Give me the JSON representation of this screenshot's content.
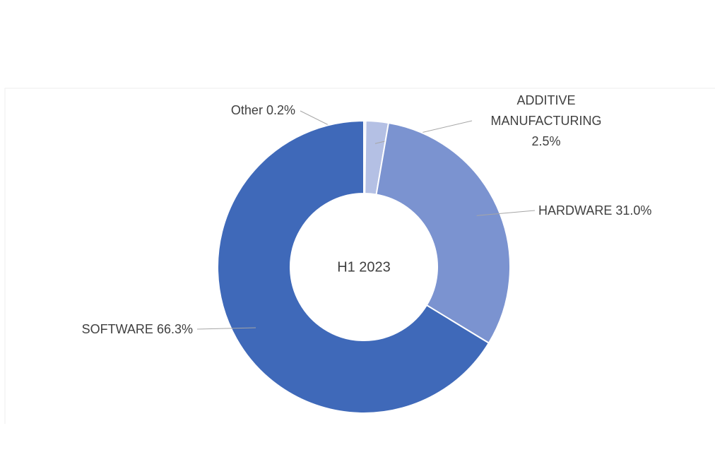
{
  "chart_data": {
    "type": "donut",
    "center_label": "H1 2023",
    "categories": [
      "Other",
      "ADDITIVE MANUFACTURING",
      "HARDWARE",
      "SOFTWARE"
    ],
    "values": [
      0.2,
      2.5,
      31.0,
      66.3
    ],
    "value_labels": [
      "0.2%",
      "2.5%",
      "31.0%",
      "66.3%"
    ],
    "colors": [
      "#c9d0ec",
      "#b4c0e4",
      "#7b93d0",
      "#3f69b9"
    ]
  }
}
